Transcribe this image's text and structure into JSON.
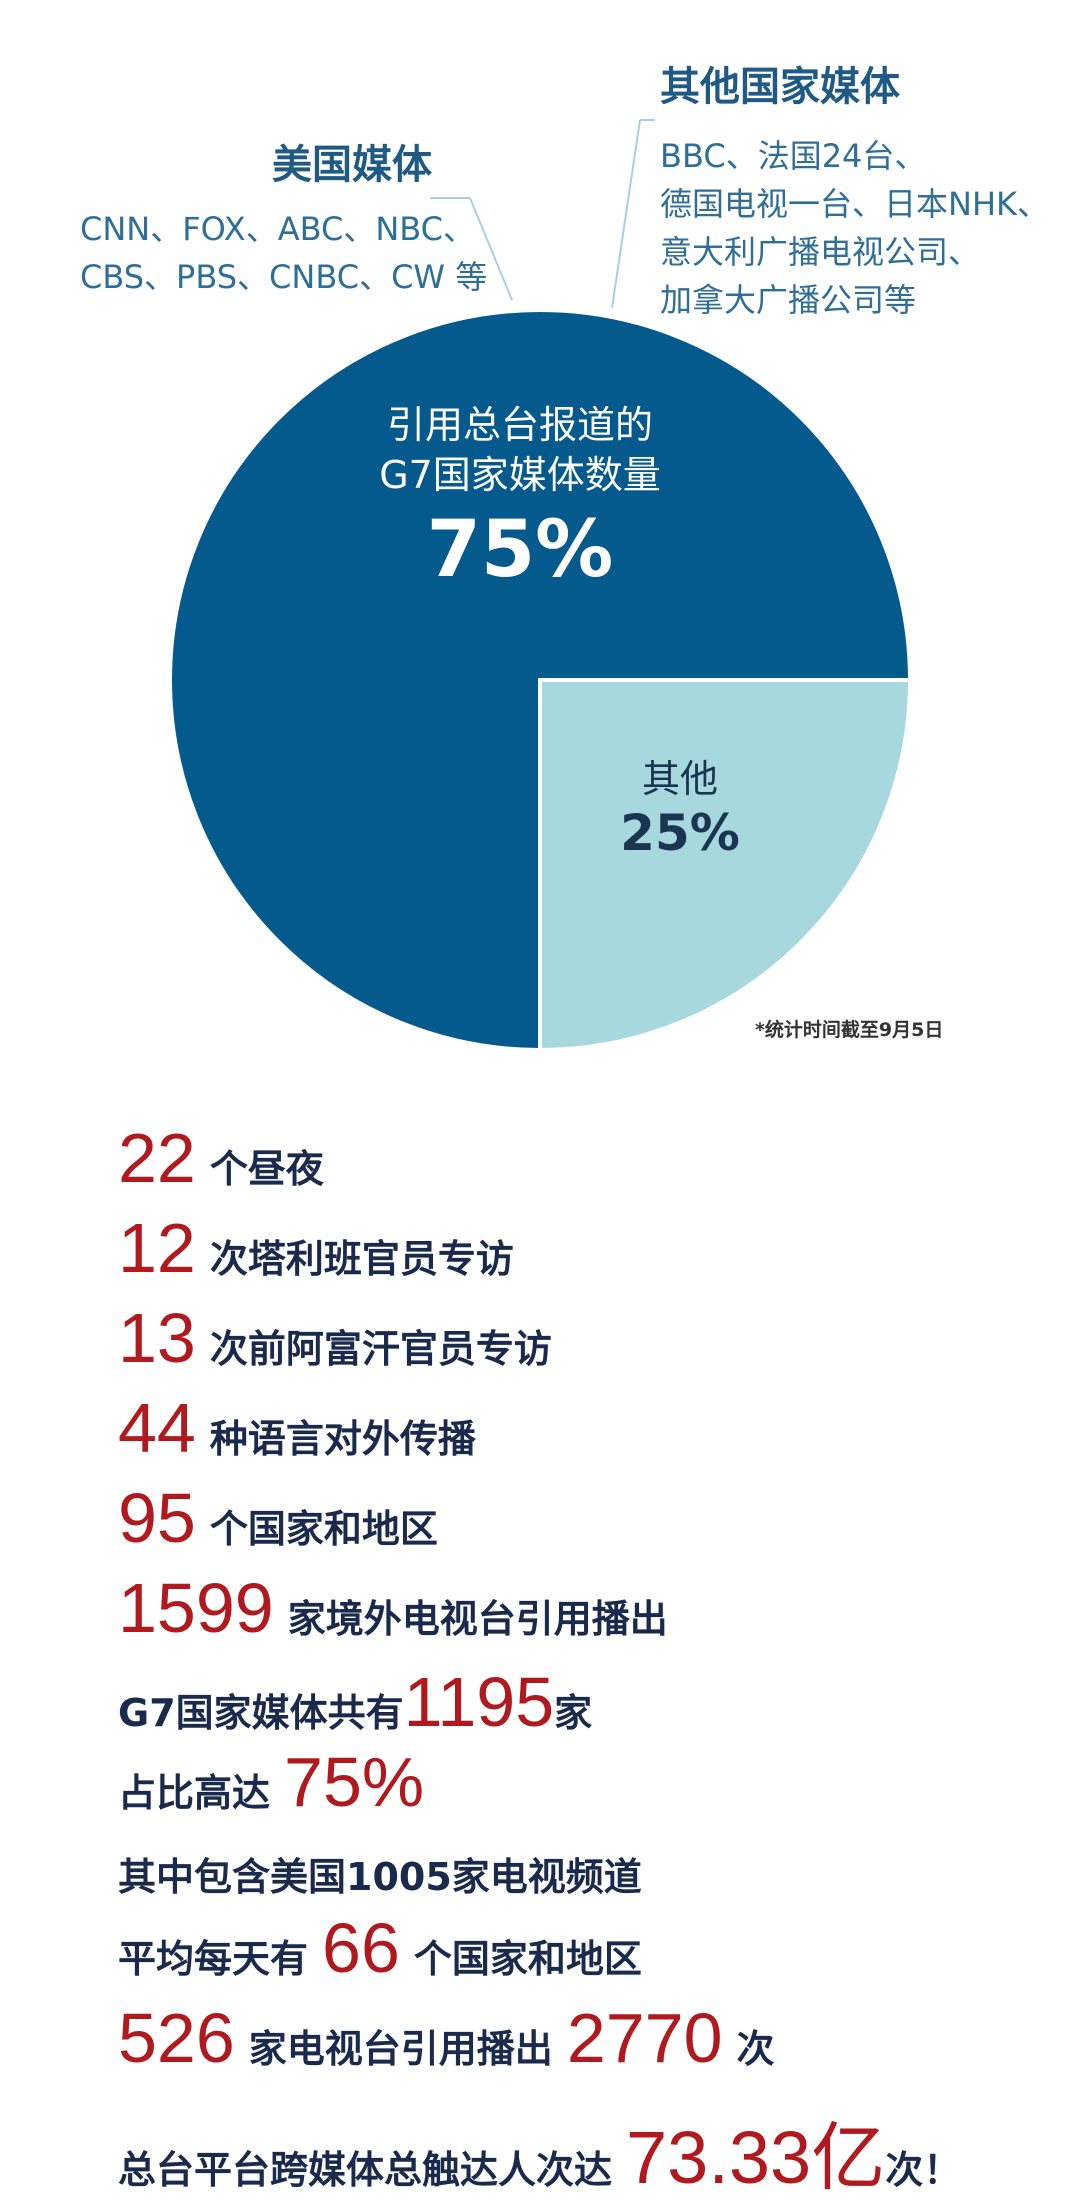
{
  "callouts": {
    "us": {
      "title": "美国媒体",
      "line1": "CNN、FOX、ABC、NBC、",
      "line2": "CBS、PBS、CNBC、CW  等"
    },
    "other": {
      "title": "其他国家媒体",
      "line1": "BBC、法国24台、",
      "line2": "德国电视一台、日本NHK、",
      "line3": "意大利广播电视公司、",
      "line4": "加拿大广播公司等"
    }
  },
  "chart_data": {
    "type": "pie",
    "slices": [
      {
        "label_line1": "引用总台报道的",
        "label_line2": "G7国家媒体数量",
        "value": 75,
        "value_label": "75%",
        "color": "#04598d"
      },
      {
        "label_line1": "其他",
        "value": 25,
        "value_label": "25%",
        "color": "#a6d8de"
      }
    ],
    "note": "*统计时间截至9月5日"
  },
  "stats": [
    {
      "num": "22",
      "text": "个昼夜"
    },
    {
      "num": "12",
      "text": "次塔利班官员专访"
    },
    {
      "num": "13",
      "text": "次前阿富汗官员专访"
    },
    {
      "num": "44",
      "text": "种语言对外传播"
    },
    {
      "num": "95",
      "text": "个国家和地区"
    },
    {
      "num": "1599",
      "text": "家境外电视台引用播出"
    }
  ],
  "g7_line": {
    "pre": "G7国家媒体共有",
    "num": "1195",
    "post": "家"
  },
  "ratio_line": {
    "pre": "占比高达",
    "num": "75%"
  },
  "us_line": {
    "text": "其中包含美国1005家电视频道"
  },
  "daily_line": {
    "pre": "平均每天有",
    "num": "66",
    "post": "个国家和地区"
  },
  "tv_line": {
    "num1": "526",
    "mid": "家电视台引用播出",
    "num2": "2770",
    "post": "次"
  },
  "reach_line": {
    "pre": "总台平台跨媒体总触达人次达",
    "num": "73.33亿",
    "post": "次！"
  },
  "colors": {
    "big_slice": "#04598d",
    "small_slice": "#a6d8de",
    "red": "#b0191e",
    "navy_text": "#1a2a4c"
  }
}
